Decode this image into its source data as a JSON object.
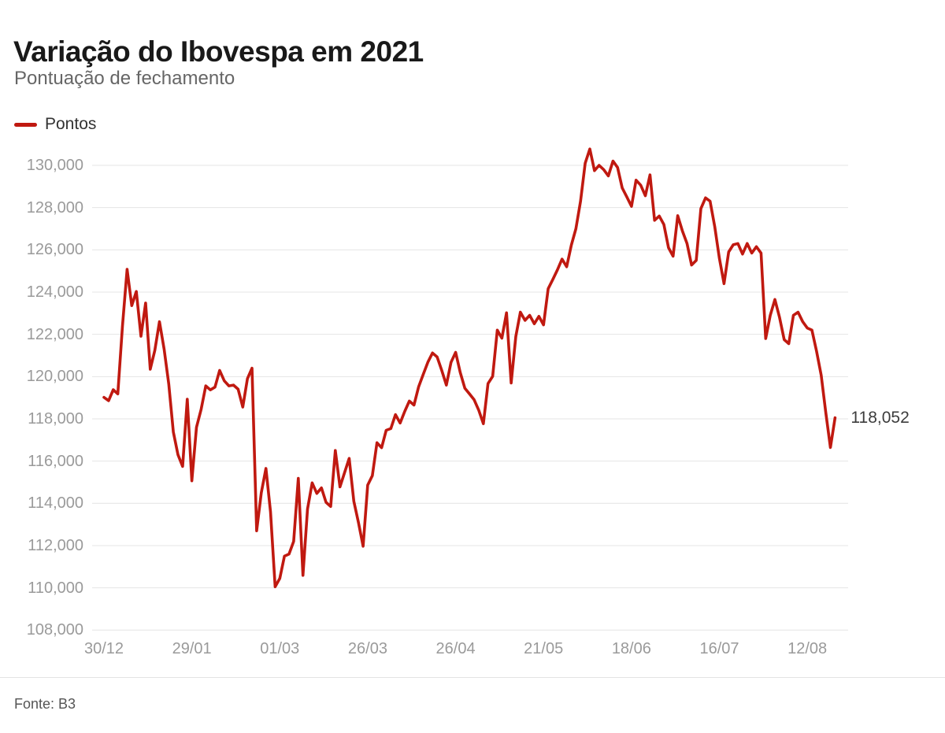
{
  "page": {
    "title": "Variação do Ibovespa em 2021",
    "subtitle": "Pontuação de fechamento",
    "source": "Fonte: B3"
  },
  "legend": {
    "label": "Pontos",
    "color": "#c01910"
  },
  "chart_data": {
    "type": "line",
    "title": "Variação do Ibovespa em 2021",
    "subtitle": "Pontuação de fechamento",
    "series_name": "Pontos",
    "line_color": "#c01910",
    "grid_color": "#e4e4e4",
    "axis_label_color": "#9a9a9a",
    "background": "#ffffff",
    "grid": true,
    "legend_position": "top-left",
    "ylim": [
      108000,
      130000
    ],
    "y_tick_step": 2000,
    "y_tick_labels": [
      "130,000",
      "128,000",
      "126,000",
      "124,000",
      "122,000",
      "120,000",
      "118,000",
      "116,000",
      "114,000",
      "112,000",
      "110,000",
      "108,000"
    ],
    "x_tick_labels": [
      "30/12",
      "29/01",
      "01/03",
      "26/03",
      "26/04",
      "21/05",
      "18/06",
      "16/07",
      "12/08"
    ],
    "end_label": "118,052",
    "x": [
      "30/12",
      "04/01",
      "05/01",
      "06/01",
      "07/01",
      "08/01",
      "11/01",
      "12/01",
      "13/01",
      "14/01",
      "15/01",
      "18/01",
      "19/01",
      "20/01",
      "21/01",
      "22/01",
      "26/01",
      "27/01",
      "28/01",
      "29/01",
      "01/02",
      "02/02",
      "03/02",
      "04/02",
      "05/02",
      "08/02",
      "09/02",
      "10/02",
      "11/02",
      "12/02",
      "17/02",
      "18/02",
      "19/02",
      "22/02",
      "23/02",
      "24/02",
      "25/02",
      "26/02",
      "01/03",
      "02/03",
      "03/03",
      "04/03",
      "05/03",
      "08/03",
      "09/03",
      "10/03",
      "11/03",
      "12/03",
      "15/03",
      "16/03",
      "17/03",
      "18/03",
      "19/03",
      "22/03",
      "23/03",
      "24/03",
      "25/03",
      "26/03",
      "29/03",
      "30/03",
      "31/03",
      "01/04",
      "05/04",
      "06/04",
      "07/04",
      "08/04",
      "09/04",
      "12/04",
      "13/04",
      "14/04",
      "15/04",
      "16/04",
      "19/04",
      "20/04",
      "22/04",
      "23/04",
      "26/04",
      "27/04",
      "28/04",
      "29/04",
      "30/04",
      "03/05",
      "04/05",
      "05/05",
      "06/05",
      "07/05",
      "10/05",
      "11/05",
      "12/05",
      "13/05",
      "14/05",
      "17/05",
      "18/05",
      "19/05",
      "20/05",
      "21/05",
      "24/05",
      "25/05",
      "26/05",
      "27/05",
      "28/05",
      "31/05",
      "01/06",
      "02/06",
      "04/06",
      "07/06",
      "08/06",
      "09/06",
      "10/06",
      "11/06",
      "14/06",
      "15/06",
      "16/06",
      "17/06",
      "18/06",
      "21/06",
      "22/06",
      "23/06",
      "24/06",
      "25/06",
      "28/06",
      "29/06",
      "30/06",
      "01/07",
      "02/07",
      "05/07",
      "06/07",
      "07/07",
      "08/07",
      "12/07",
      "13/07",
      "14/07",
      "15/07",
      "16/07",
      "19/07",
      "20/07",
      "21/07",
      "22/07",
      "23/07",
      "26/07",
      "27/07",
      "28/07",
      "29/07",
      "30/07",
      "02/08",
      "03/08",
      "04/08",
      "05/08",
      "06/08",
      "09/08",
      "10/08",
      "11/08",
      "12/08",
      "13/08",
      "16/08",
      "17/08",
      "18/08",
      "19/08",
      "20/08"
    ],
    "values": [
      119017,
      118860,
      119380,
      119180,
      122386,
      125077,
      123360,
      124030,
      121910,
      123480,
      120347,
      121240,
      122600,
      121300,
      119650,
      117380,
      116300,
      115750,
      118930,
      115068,
      117600,
      118450,
      119560,
      119370,
      119500,
      120290,
      119800,
      119560,
      119600,
      119400,
      118560,
      119900,
      120400,
      112700,
      114500,
      115650,
      113600,
      110050,
      110450,
      111500,
      111600,
      112200,
      115180,
      110590,
      113730,
      114970,
      114470,
      114730,
      114050,
      113850,
      116500,
      114780,
      115450,
      116130,
      114100,
      113090,
      111970,
      114860,
      115310,
      116870,
      116634,
      117460,
      117540,
      118200,
      117800,
      118350,
      118840,
      118650,
      119520,
      120100,
      120680,
      121120,
      120930,
      120300,
      119600,
      120670,
      121150,
      120200,
      119450,
      119180,
      118900,
      118400,
      117770,
      119670,
      120010,
      122200,
      121820,
      123020,
      119700,
      121900,
      123050,
      122660,
      122900,
      122500,
      122850,
      122450,
      124160,
      124600,
      125050,
      125560,
      125200,
      126220,
      127000,
      128300,
      130100,
      130776,
      129750,
      130000,
      129800,
      129500,
      130200,
      129900,
      128930,
      128500,
      128060,
      129300,
      129060,
      128560,
      129550,
      127400,
      127600,
      127200,
      126100,
      125700,
      127620,
      126900,
      126300,
      125280,
      125500,
      127950,
      128460,
      128300,
      127100,
      125600,
      124400,
      125900,
      126240,
      126300,
      125800,
      126300,
      125850,
      126150,
      125850,
      121800,
      122900,
      123650,
      122800,
      121750,
      121560,
      122900,
      123050,
      122600,
      122300,
      122200,
      121200,
      120060,
      118300,
      116642,
      118052
    ]
  }
}
